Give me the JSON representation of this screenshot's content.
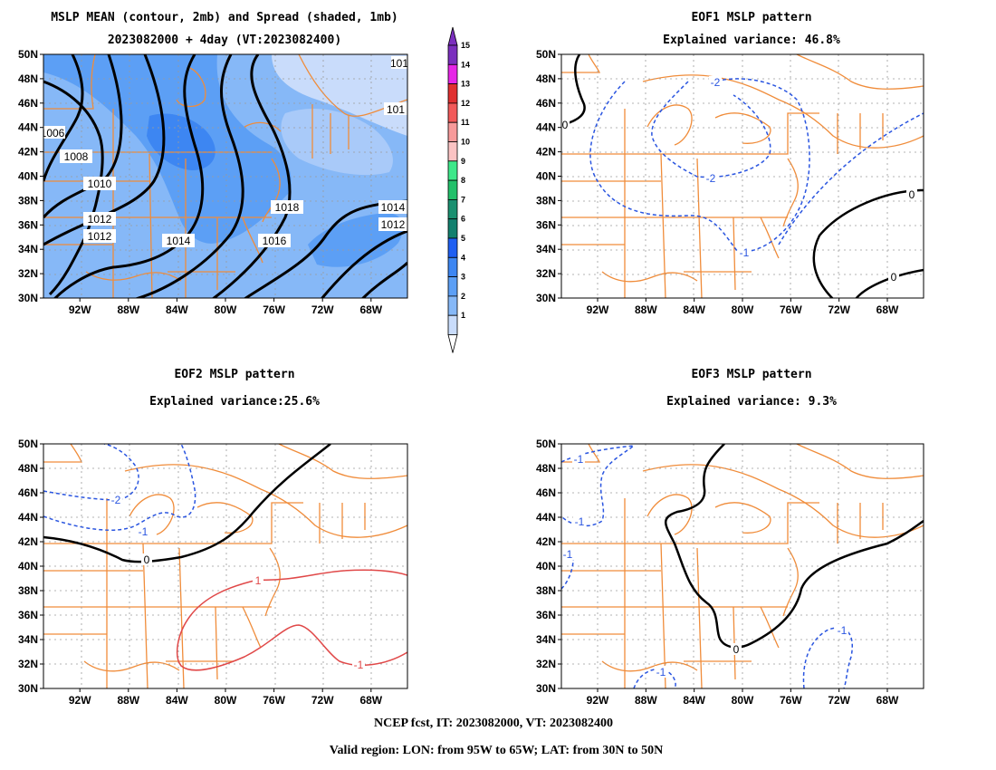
{
  "footer": {
    "line1": "NCEP fcst, IT: 2023082000, VT: 2023082400",
    "line2": "Valid region: LON: from 95W to 65W; LAT: from 30N to 50N"
  },
  "axes": {
    "lat_labels": [
      "50N",
      "48N",
      "46N",
      "44N",
      "42N",
      "40N",
      "38N",
      "36N",
      "34N",
      "32N",
      "30N"
    ],
    "lon_labels": [
      "92W",
      "88W",
      "84W",
      "80W",
      "76W",
      "72W",
      "68W"
    ]
  },
  "colorbar": {
    "levels": [
      "15",
      "14",
      "13",
      "12",
      "11",
      "10",
      "9",
      "8",
      "7",
      "6",
      "5",
      "4",
      "3",
      "2",
      "1"
    ],
    "colors": [
      "#7b2fbe",
      "#e626e6",
      "#e03030",
      "#f25a5a",
      "#f79a9a",
      "#fbc3c3",
      "#3ee88a",
      "#22c06a",
      "#1a9070",
      "#12806e",
      "#1f5ff2",
      "#3d86f2",
      "#5c9ff5",
      "#86b8f7",
      "#c9dcfb"
    ]
  },
  "colors": {
    "coast": "#f08c3a",
    "neg": "#2a55e0",
    "pos": "#e04848",
    "zero": "#000000",
    "grid": "#9a9a9a"
  },
  "panels": [
    {
      "id": "mslp",
      "title1": "MSLP MEAN (contour, 2mb) and Spread (shaded, 1mb)",
      "title2": "2023082000 + 4day (VT:2023082400)",
      "contour_labels": [
        "1008",
        "1010",
        "1012",
        "1012",
        "1014",
        "1016",
        "1018",
        "1014",
        "1012",
        "1006",
        "101",
        "101"
      ]
    },
    {
      "id": "eof1",
      "title1": "EOF1 MSLP pattern",
      "title2": "Explained variance: 46.8%",
      "contour_labels": [
        "-2",
        "-2",
        "-1",
        "0",
        "0",
        "0"
      ]
    },
    {
      "id": "eof2",
      "title1": "EOF2 MSLP pattern",
      "title2": "Explained variance:25.6%",
      "contour_labels": [
        "-2",
        "-1",
        "0",
        "1",
        "-1"
      ]
    },
    {
      "id": "eof3",
      "title1": "EOF3 MSLP pattern",
      "title2": "Explained variance: 9.3%",
      "contour_labels": [
        "-1",
        "-1",
        "-1",
        "-1",
        "0",
        "-1"
      ]
    }
  ]
}
